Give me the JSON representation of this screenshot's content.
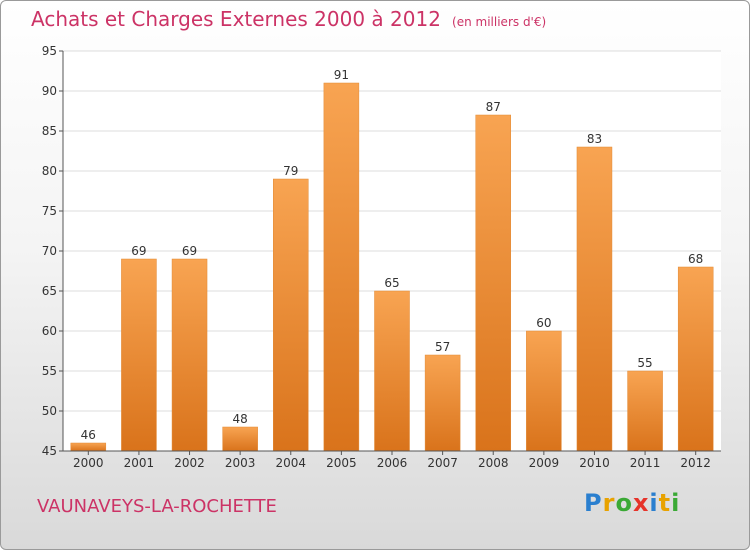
{
  "title": "Achats et Charges Externes 2000 à 2012",
  "unit": "(en milliers d'€)",
  "location": "VAUNAVEYS-LA-ROCHETTE",
  "brand": {
    "letters": [
      "P",
      "r",
      "o",
      "x",
      "i",
      "t",
      "i"
    ],
    "colors": [
      "#2a7fcf",
      "#e8a200",
      "#3aa935",
      "#e6332a",
      "#2a7fcf",
      "#e8a200",
      "#3aa935"
    ]
  },
  "chart_data": {
    "type": "bar",
    "title": "Achats et Charges Externes 2000 à 2012",
    "xlabel": "",
    "ylabel": "",
    "categories": [
      "2000",
      "2001",
      "2002",
      "2003",
      "2004",
      "2005",
      "2006",
      "2007",
      "2008",
      "2009",
      "2010",
      "2011",
      "2012"
    ],
    "values": [
      46,
      69,
      69,
      48,
      79,
      91,
      65,
      57,
      87,
      60,
      83,
      55,
      68
    ],
    "ylim": [
      45,
      95
    ],
    "yticks": [
      45,
      50,
      55,
      60,
      65,
      70,
      75,
      80,
      85,
      90,
      95
    ],
    "grid": true,
    "bar_color_top": "#f8a452",
    "bar_color_bottom": "#d9731b",
    "value_labels": true
  }
}
